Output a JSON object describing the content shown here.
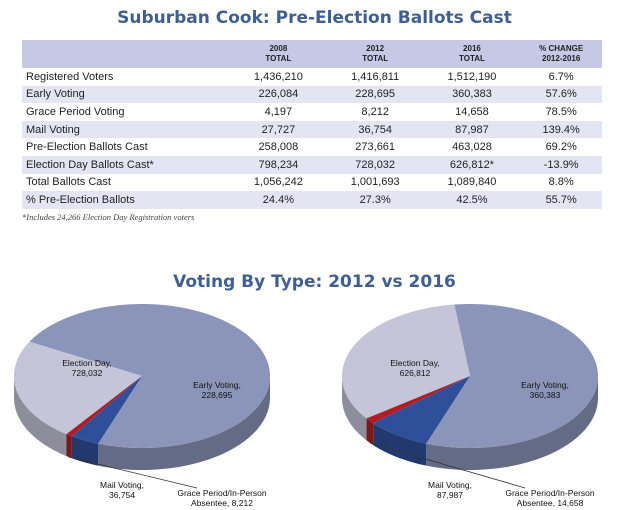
{
  "table_title": "Suburban Cook: Pre-Election Ballots Cast",
  "columns": [
    {
      "line1": "",
      "line2": ""
    },
    {
      "line1": "2008",
      "line2": "TOTAL"
    },
    {
      "line1": "2012",
      "line2": "TOTAL"
    },
    {
      "line1": "2016",
      "line2": "TOTAL"
    },
    {
      "line1": "% CHANGE",
      "line2": "2012-2016"
    }
  ],
  "rows": [
    {
      "label": "Registered Voters",
      "v2008": "1,436,210",
      "v2012": "1,416,811",
      "v2016": "1,512,190",
      "change": "6.7%"
    },
    {
      "label": "Early Voting",
      "v2008": "226,084",
      "v2012": "228,695",
      "v2016": "360,383",
      "change": "57.6%"
    },
    {
      "label": "Grace Period Voting",
      "v2008": "4,197",
      "v2012": "8,212",
      "v2016": "14,658",
      "change": "78.5%"
    },
    {
      "label": "Mail Voting",
      "v2008": "27,727",
      "v2012": "36,754",
      "v2016": "87,987",
      "change": "139.4%"
    },
    {
      "label": "Pre-Election Ballots Cast",
      "v2008": "258,008",
      "v2012": "273,661",
      "v2016": "463,028",
      "change": "69.2%"
    },
    {
      "label": "Election Day Ballots Cast*",
      "v2008": "798,234",
      "v2012": "728,032",
      "v2016": "626,812*",
      "change": "-13.9%"
    },
    {
      "label": "Total Ballots Cast",
      "v2008": "1,056,242",
      "v2012": "1,001,693",
      "v2016": "1,089,840",
      "change": "8.8%"
    },
    {
      "label": "% Pre-Election Ballots",
      "v2008": "24.4%",
      "v2012": "27.3%",
      "v2016": "42.5%",
      "change": "55.7%"
    }
  ],
  "footnote": "*Includes 24,266 Election Day Registration voters",
  "chart_data": {
    "type": "pie",
    "title": "Voting By Type: 2012 vs 2016",
    "colors": {
      "election_day": "#8b95b9",
      "early_voting": "#c4c5d8",
      "mail_voting": "#2f4f9a",
      "grace_period": "#b01e23"
    },
    "pies": [
      {
        "year": "2012",
        "slices": [
          {
            "key": "election_day",
            "name": "Election Day,",
            "value": 728032,
            "value_label": "728,032"
          },
          {
            "key": "early_voting",
            "name": "Early Voting,",
            "value": 228695,
            "value_label": "228,695"
          },
          {
            "key": "grace_period",
            "name": "Grace Period/In-Person",
            "name2": "Absentee,",
            "value": 8212,
            "value_label": "8,212"
          },
          {
            "key": "mail_voting",
            "name": "Mail Voting,",
            "value": 36754,
            "value_label": "36,754"
          }
        ]
      },
      {
        "year": "2016",
        "slices": [
          {
            "key": "election_day",
            "name": "Election Day,",
            "value": 626812,
            "value_label": "626,812"
          },
          {
            "key": "early_voting",
            "name": "Early Voting,",
            "value": 360383,
            "value_label": "360,383"
          },
          {
            "key": "grace_period",
            "name": "Grace Period/In-Person",
            "name2": "Absentee,",
            "value": 14658,
            "value_label": "14,658"
          },
          {
            "key": "mail_voting",
            "name": "Mail Voting,",
            "value": 87987,
            "value_label": "87,987"
          }
        ]
      }
    ]
  }
}
